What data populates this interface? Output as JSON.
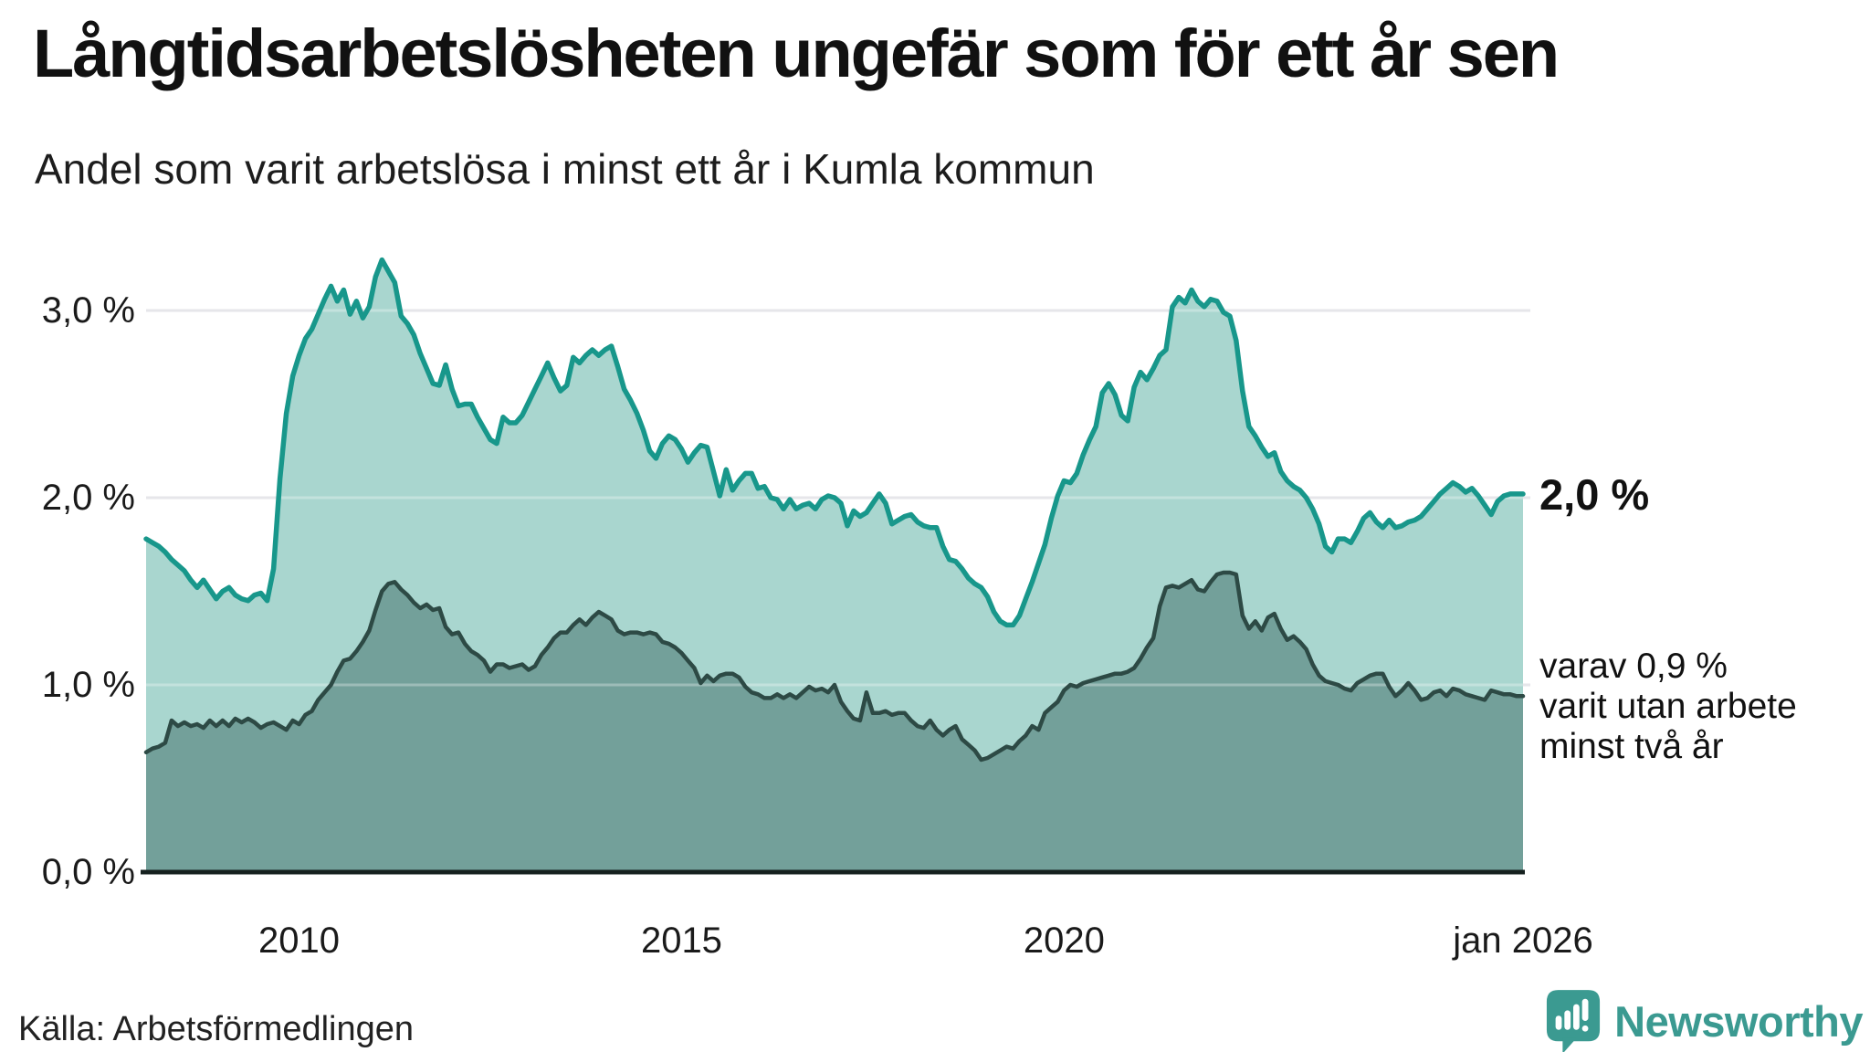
{
  "header": {
    "title": "Långtidsarbetslösheten ungefär som för ett år sen",
    "subtitle": "Andel som varit arbetslösa i minst ett år i Kumla kommun"
  },
  "annotations": {
    "last_value": "2,0 %",
    "secondary_line1": "varav 0,9 %",
    "secondary_line2": "varit utan arbete",
    "secondary_line3": "minst två år"
  },
  "footer": {
    "source": "Källa: Arbetsförmedlingen",
    "brand": "Newsworthy"
  },
  "colors": {
    "series1_line": "#18978b",
    "series1_fill": "#a9d6cf",
    "series2_line": "#2d4a45",
    "series2_fill": "#73a09a",
    "gridline": "#dcdce1",
    "axis": "#16211f",
    "brand_teal": "#3b9a91",
    "text": "#111111"
  },
  "chart_data": {
    "type": "area",
    "title": "Långtidsarbetslösheten ungefär som för ett år sen",
    "subtitle": "Andel som varit arbetslösa i minst ett år i Kumla kommun",
    "unit": "%",
    "x_start": "2008-01",
    "x_end": "2026-01",
    "interval": "monthly",
    "ylim": [
      0,
      3.4
    ],
    "grid": "horizontal",
    "legend_position": "right-annotations",
    "y_ticks": [
      {
        "label": "0,0 %",
        "value": 0
      },
      {
        "label": "1,0 %",
        "value": 1
      },
      {
        "label": "2,0 %",
        "value": 2
      },
      {
        "label": "3,0 %",
        "value": 3
      }
    ],
    "x_ticks": [
      {
        "label": "2010",
        "month_index": 24
      },
      {
        "label": "2015",
        "month_index": 84
      },
      {
        "label": "2020",
        "month_index": 144
      },
      {
        "label": "jan 2026",
        "month_index": 216
      }
    ],
    "series": [
      {
        "name": "Andel som varit arbetslösa i minst ett år",
        "last_value_label": "2,0 %",
        "color": "#18978b",
        "fill": "#a9d6cf",
        "values": [
          1.78,
          1.76,
          1.74,
          1.71,
          1.67,
          1.64,
          1.61,
          1.56,
          1.52,
          1.56,
          1.51,
          1.46,
          1.5,
          1.52,
          1.48,
          1.46,
          1.45,
          1.48,
          1.49,
          1.45,
          1.62,
          2.1,
          2.45,
          2.65,
          2.76,
          2.85,
          2.9,
          2.98,
          3.06,
          3.13,
          3.05,
          3.11,
          2.98,
          3.05,
          2.96,
          3.02,
          3.18,
          3.27,
          3.21,
          3.15,
          2.97,
          2.93,
          2.87,
          2.77,
          2.69,
          2.61,
          2.6,
          2.71,
          2.58,
          2.49,
          2.5,
          2.5,
          2.43,
          2.37,
          2.31,
          2.29,
          2.43,
          2.4,
          2.4,
          2.44,
          2.51,
          2.58,
          2.65,
          2.72,
          2.64,
          2.57,
          2.6,
          2.75,
          2.72,
          2.76,
          2.79,
          2.76,
          2.79,
          2.81,
          2.7,
          2.58,
          2.52,
          2.45,
          2.36,
          2.25,
          2.21,
          2.29,
          2.33,
          2.31,
          2.26,
          2.19,
          2.24,
          2.28,
          2.27,
          2.14,
          2.01,
          2.15,
          2.04,
          2.09,
          2.13,
          2.13,
          2.05,
          2.06,
          2.0,
          1.99,
          1.94,
          1.99,
          1.94,
          1.96,
          1.97,
          1.94,
          1.99,
          2.01,
          2.0,
          1.97,
          1.85,
          1.93,
          1.9,
          1.92,
          1.97,
          2.02,
          1.97,
          1.86,
          1.88,
          1.9,
          1.91,
          1.87,
          1.85,
          1.84,
          1.84,
          1.74,
          1.67,
          1.66,
          1.62,
          1.57,
          1.54,
          1.52,
          1.47,
          1.39,
          1.34,
          1.32,
          1.32,
          1.37,
          1.46,
          1.55,
          1.65,
          1.75,
          1.89,
          2.01,
          2.09,
          2.08,
          2.13,
          2.23,
          2.31,
          2.38,
          2.56,
          2.61,
          2.55,
          2.44,
          2.41,
          2.59,
          2.67,
          2.63,
          2.69,
          2.76,
          2.79,
          3.02,
          3.07,
          3.04,
          3.11,
          3.05,
          3.02,
          3.06,
          3.05,
          2.99,
          2.97,
          2.84,
          2.57,
          2.38,
          2.33,
          2.27,
          2.22,
          2.24,
          2.14,
          2.09,
          2.06,
          2.04,
          2.0,
          1.94,
          1.86,
          1.74,
          1.71,
          1.78,
          1.78,
          1.76,
          1.82,
          1.89,
          1.92,
          1.87,
          1.84,
          1.88,
          1.84,
          1.85,
          1.87,
          1.88,
          1.9,
          1.94,
          1.98,
          2.02,
          2.05,
          2.08,
          2.06,
          2.03,
          2.05,
          2.01,
          1.96,
          1.91,
          1.98,
          2.01,
          2.02,
          2.02,
          2.02
        ]
      },
      {
        "name": "varav utan arbete minst två år",
        "last_value_label": "varav 0,9 %",
        "color": "#2d4a45",
        "fill": "#73a09a",
        "values": [
          0.64,
          0.66,
          0.67,
          0.69,
          0.81,
          0.78,
          0.8,
          0.78,
          0.79,
          0.77,
          0.81,
          0.78,
          0.81,
          0.78,
          0.82,
          0.8,
          0.82,
          0.8,
          0.77,
          0.79,
          0.8,
          0.78,
          0.76,
          0.81,
          0.79,
          0.84,
          0.86,
          0.92,
          0.96,
          1.0,
          1.07,
          1.13,
          1.14,
          1.18,
          1.23,
          1.29,
          1.4,
          1.5,
          1.54,
          1.55,
          1.51,
          1.48,
          1.44,
          1.41,
          1.43,
          1.4,
          1.41,
          1.31,
          1.27,
          1.28,
          1.22,
          1.18,
          1.16,
          1.13,
          1.07,
          1.11,
          1.11,
          1.09,
          1.1,
          1.11,
          1.08,
          1.1,
          1.16,
          1.2,
          1.25,
          1.28,
          1.28,
          1.32,
          1.35,
          1.32,
          1.36,
          1.39,
          1.37,
          1.35,
          1.29,
          1.27,
          1.28,
          1.28,
          1.27,
          1.28,
          1.27,
          1.23,
          1.22,
          1.2,
          1.17,
          1.13,
          1.09,
          1.01,
          1.05,
          1.02,
          1.05,
          1.06,
          1.06,
          1.04,
          0.99,
          0.96,
          0.95,
          0.93,
          0.93,
          0.95,
          0.93,
          0.95,
          0.93,
          0.96,
          0.99,
          0.97,
          0.98,
          0.96,
          1.0,
          0.91,
          0.86,
          0.82,
          0.81,
          0.96,
          0.85,
          0.85,
          0.86,
          0.84,
          0.85,
          0.85,
          0.81,
          0.78,
          0.77,
          0.81,
          0.76,
          0.73,
          0.76,
          0.78,
          0.71,
          0.68,
          0.65,
          0.6,
          0.61,
          0.63,
          0.65,
          0.67,
          0.66,
          0.7,
          0.73,
          0.78,
          0.76,
          0.85,
          0.88,
          0.91,
          0.97,
          1.0,
          0.99,
          1.01,
          1.02,
          1.03,
          1.04,
          1.05,
          1.06,
          1.06,
          1.07,
          1.09,
          1.14,
          1.2,
          1.25,
          1.42,
          1.52,
          1.53,
          1.52,
          1.54,
          1.56,
          1.51,
          1.5,
          1.55,
          1.59,
          1.6,
          1.6,
          1.59,
          1.37,
          1.3,
          1.34,
          1.29,
          1.36,
          1.38,
          1.3,
          1.24,
          1.26,
          1.23,
          1.19,
          1.11,
          1.05,
          1.02,
          1.01,
          1.0,
          0.98,
          0.97,
          1.01,
          1.03,
          1.05,
          1.06,
          1.06,
          0.99,
          0.94,
          0.97,
          1.01,
          0.97,
          0.92,
          0.93,
          0.96,
          0.97,
          0.94,
          0.98,
          0.97,
          0.95,
          0.94,
          0.93,
          0.92,
          0.97,
          0.96,
          0.95,
          0.95,
          0.94,
          0.94
        ]
      }
    ]
  }
}
